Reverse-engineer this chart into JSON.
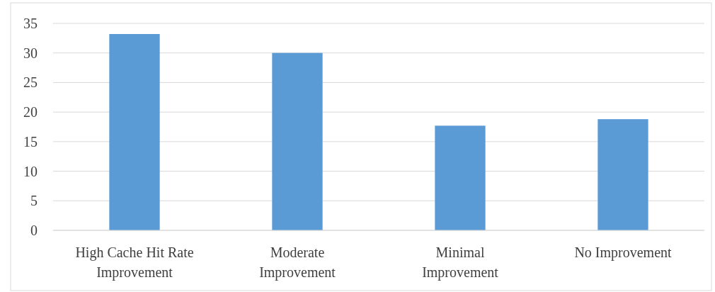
{
  "chart_data": {
    "type": "bar",
    "categories": [
      "High Cache Hit Rate Improvement",
      "Moderate Improvement",
      "Minimal Improvement",
      "No Improvement"
    ],
    "values": [
      33.2,
      30.0,
      17.7,
      18.8
    ],
    "color": "#5b9bd5",
    "ylim": [
      0,
      35
    ],
    "yticks": [
      0,
      5,
      10,
      15,
      20,
      25,
      30,
      35
    ],
    "grid": "y"
  }
}
